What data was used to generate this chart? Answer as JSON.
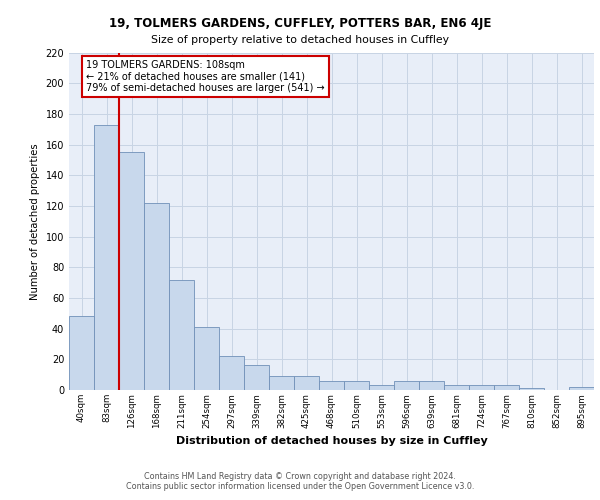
{
  "title1": "19, TOLMERS GARDENS, CUFFLEY, POTTERS BAR, EN6 4JE",
  "title2": "Size of property relative to detached houses in Cuffley",
  "xlabel": "Distribution of detached houses by size in Cuffley",
  "ylabel": "Number of detached properties",
  "categories": [
    "40sqm",
    "83sqm",
    "126sqm",
    "168sqm",
    "211sqm",
    "254sqm",
    "297sqm",
    "339sqm",
    "382sqm",
    "425sqm",
    "468sqm",
    "510sqm",
    "553sqm",
    "596sqm",
    "639sqm",
    "681sqm",
    "724sqm",
    "767sqm",
    "810sqm",
    "852sqm",
    "895sqm"
  ],
  "values": [
    48,
    173,
    155,
    122,
    72,
    41,
    22,
    16,
    9,
    9,
    6,
    6,
    3,
    6,
    6,
    3,
    3,
    3,
    1,
    0,
    2
  ],
  "bar_color": "#c8d8ec",
  "bar_edge_color": "#7090b8",
  "grid_color": "#c8d4e4",
  "bg_color": "#e8eef8",
  "vline_color": "#cc0000",
  "annotation_text": "19 TOLMERS GARDENS: 108sqm\n← 21% of detached houses are smaller (141)\n79% of semi-detached houses are larger (541) →",
  "annotation_box_color": "#ffffff",
  "annotation_box_edge": "#cc0000",
  "footnote1": "Contains HM Land Registry data © Crown copyright and database right 2024.",
  "footnote2": "Contains public sector information licensed under the Open Government Licence v3.0.",
  "ylim": [
    0,
    220
  ],
  "yticks": [
    0,
    20,
    40,
    60,
    80,
    100,
    120,
    140,
    160,
    180,
    200,
    220
  ]
}
